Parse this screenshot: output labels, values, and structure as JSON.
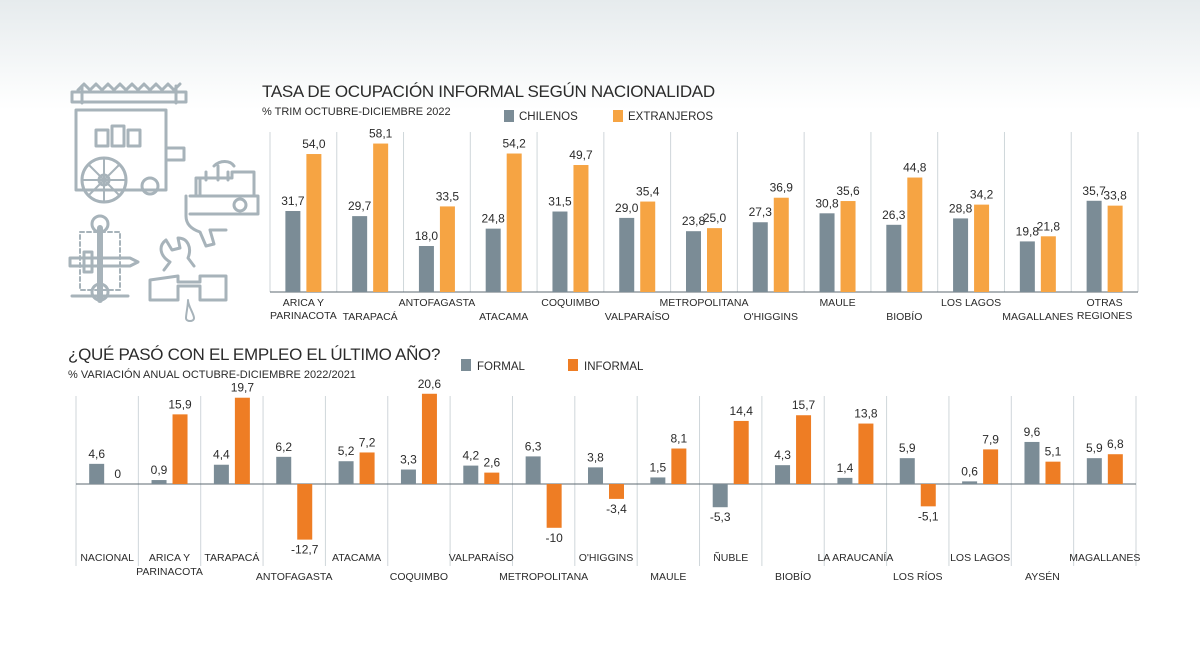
{
  "colors": {
    "chilenos": "#7b8c96",
    "extranjeros": "#f6a443",
    "formal": "#7b8c96",
    "informal": "#ee7d24",
    "text": "#2b2b2b",
    "rule": "#cfd6da",
    "icons": "#a7b3ba"
  },
  "icons": [
    "food-cart-icon",
    "sewing-machine-icon",
    "tools-icon",
    "faucet-pipe-icon"
  ],
  "chart_data": [
    {
      "type": "bar",
      "title": "TASA DE OCUPACIÓN INFORMAL SEGÚN NACIONALIDAD",
      "subtitle": "% TRIM OCTUBRE-DICIEMBRE 2022",
      "legend_position": "top",
      "categories": [
        [
          "ARICA Y",
          "PARINACOTA"
        ],
        [
          "TARAPACÁ"
        ],
        [
          "ANTOFAGASTA"
        ],
        [
          "ATACAMA"
        ],
        [
          "COQUIMBO"
        ],
        [
          "VALPARAÍSO"
        ],
        [
          "METROPOLITANA"
        ],
        [
          "O'HIGGINS"
        ],
        [
          "MAULE"
        ],
        [
          "BIOBÍO"
        ],
        [
          "LOS LAGOS"
        ],
        [
          "MAGALLANES"
        ],
        [
          "OTRAS",
          "REGIONES"
        ]
      ],
      "series": [
        {
          "name": "CHILENOS",
          "values": [
            31.7,
            29.7,
            18.0,
            24.8,
            31.5,
            29.0,
            23.8,
            27.3,
            30.8,
            26.3,
            28.8,
            19.8,
            35.7
          ],
          "labels": [
            "31,7",
            "29,7",
            "18,0",
            "24,8",
            "31,5",
            "29,0",
            "23,8",
            "27,3",
            "30,8",
            "26,3",
            "28,8",
            "19,8",
            "35,7"
          ]
        },
        {
          "name": "EXTRANJEROS",
          "values": [
            54.0,
            58.1,
            33.5,
            54.2,
            49.7,
            35.4,
            25.0,
            36.9,
            35.6,
            44.8,
            34.2,
            21.8,
            33.8
          ],
          "labels": [
            "54,0",
            "58,1",
            "33,5",
            "54,2",
            "49,7",
            "35,4",
            "25,0",
            "36,9",
            "35,6",
            "44,8",
            "34,2",
            "21,8",
            "33,8"
          ]
        }
      ],
      "ylim": [
        0,
        60
      ]
    },
    {
      "type": "bar",
      "title": "¿QUÉ PASÓ CON EL EMPLEO EL ÚLTIMO AÑO?",
      "subtitle": "% VARIACIÓN ANUAL OCTUBRE-DICIEMBRE 2022/2021",
      "legend_position": "top",
      "categories": [
        [
          "NACIONAL"
        ],
        [
          "ARICA Y",
          "PARINACOTA"
        ],
        [
          "TARAPACÁ"
        ],
        [
          "ANTOFAGASTA"
        ],
        [
          "ATACAMA"
        ],
        [
          "COQUIMBO"
        ],
        [
          "VALPARAÍSO"
        ],
        [
          "METROPOLITANA"
        ],
        [
          "O'HIGGINS"
        ],
        [
          "MAULE"
        ],
        [
          "ÑUBLE"
        ],
        [
          "BIOBÍO"
        ],
        [
          "LA ARAUCANÍA"
        ],
        [
          "LOS RÍOS"
        ],
        [
          "LOS LAGOS"
        ],
        [
          "AYSÉN"
        ],
        [
          "MAGALLANES"
        ]
      ],
      "series": [
        {
          "name": "FORMAL",
          "values": [
            4.6,
            0.9,
            4.4,
            6.2,
            5.2,
            3.3,
            4.2,
            6.3,
            3.8,
            1.5,
            -5.3,
            4.3,
            1.4,
            5.9,
            0.6,
            9.6,
            5.9
          ],
          "labels": [
            "4,6",
            "0,9",
            "4,4",
            "6,2",
            "5,2",
            "3,3",
            "4,2",
            "6,3",
            "3,8",
            "1,5",
            "-5,3",
            "4,3",
            "1,4",
            "5,9",
            "0,6",
            "9,6",
            "5,9"
          ]
        },
        {
          "name": "INFORMAL",
          "values": [
            0,
            15.9,
            19.7,
            -12.7,
            7.2,
            20.6,
            2.6,
            -10,
            -3.4,
            8.1,
            14.4,
            15.7,
            13.8,
            -5.1,
            7.9,
            5.1,
            6.8
          ],
          "labels": [
            "0",
            "15,9",
            "19,7",
            "-12,7",
            "7,2",
            "20,6",
            "2,6",
            "-10",
            "-3,4",
            "8,1",
            "14,4",
            "15,7",
            "13,8",
            "-5,1",
            "7,9",
            "5,1",
            "6,8"
          ]
        }
      ],
      "ylim": [
        -15,
        21
      ]
    }
  ]
}
